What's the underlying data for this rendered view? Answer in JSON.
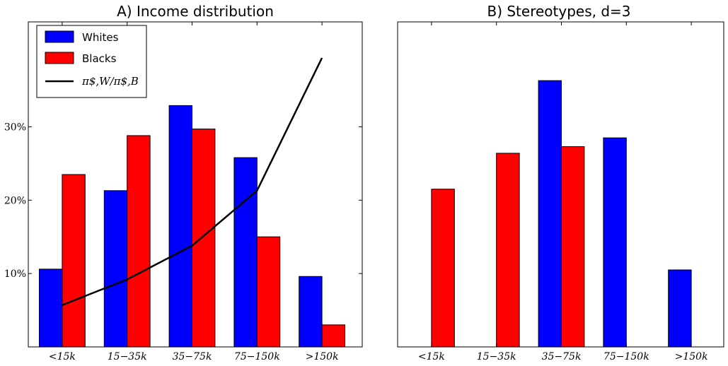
{
  "chart_data": [
    {
      "type": "bar",
      "title": "A) Income distribution",
      "categories": [
        "<15k",
        "15−35k",
        "35−75k",
        "75−150k",
        ">150k"
      ],
      "series": [
        {
          "name": "Whites",
          "color": "#0000ff",
          "values": [
            10.6,
            21.3,
            32.9,
            25.8,
            9.6
          ]
        },
        {
          "name": "Blacks",
          "color": "#ff0000",
          "values": [
            23.5,
            28.8,
            29.7,
            15.0,
            3.0
          ]
        }
      ],
      "line": {
        "name": "π$,W/π$,B",
        "color": "#000000",
        "values": [
          5.7,
          9.2,
          13.8,
          21.3,
          39.4
        ]
      },
      "yticks": [
        {
          "value": 10,
          "label": "10%"
        },
        {
          "value": 20,
          "label": "20%"
        },
        {
          "value": 30,
          "label": "30%"
        }
      ],
      "ylim": [
        0,
        44.3
      ],
      "legend": "top-left",
      "grid": false
    },
    {
      "type": "bar",
      "title": "B) Stereotypes, d=3",
      "categories": [
        "<15k",
        "15−35k",
        "35−75k",
        "75−150k",
        ">150k"
      ],
      "series": [
        {
          "name": "Whites",
          "color": "#0000ff",
          "values": [
            0,
            0,
            36.3,
            28.5,
            10.5
          ]
        },
        {
          "name": "Blacks",
          "color": "#ff0000",
          "values": [
            21.5,
            26.4,
            27.3,
            0,
            0
          ]
        }
      ],
      "ylim": [
        0,
        44.3
      ],
      "grid": false
    }
  ]
}
